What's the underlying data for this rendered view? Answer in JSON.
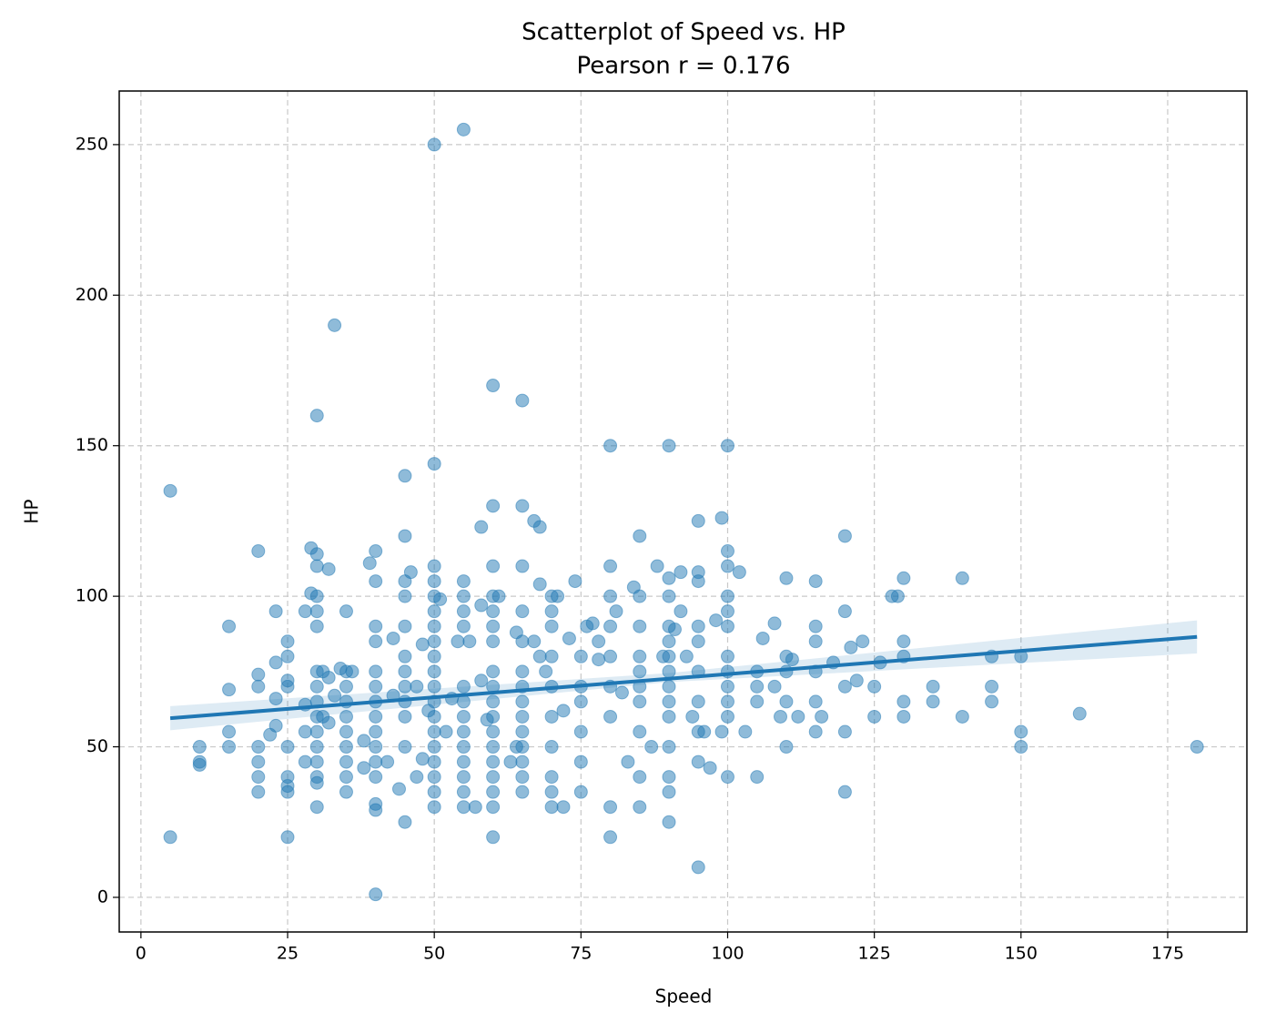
{
  "chart_data": {
    "type": "scatter",
    "title": "Scatterplot of Speed vs. HP",
    "subtitle": "Pearson r = 0.176",
    "x_label": "Speed",
    "y_label": "HP",
    "xlim": [
      -3.7,
      188.5
    ],
    "ylim": [
      -11.5,
      267.8
    ],
    "xticks": [
      0,
      25,
      50,
      75,
      100,
      125,
      150,
      175
    ],
    "yticks": [
      0,
      50,
      100,
      150,
      200,
      250
    ],
    "grid": true,
    "series": [
      {
        "color": "#1f77b4",
        "x": [
          5,
          5,
          10,
          10,
          10,
          15,
          15,
          15,
          15,
          20,
          20,
          20,
          20,
          20,
          20,
          20,
          22,
          23,
          23,
          23,
          23,
          25,
          25,
          25,
          25,
          25,
          25,
          25,
          25,
          25,
          28,
          28,
          28,
          28,
          29,
          29,
          30,
          30,
          30,
          30,
          30,
          30,
          30,
          30,
          30,
          30,
          30,
          30,
          30,
          30,
          30,
          30,
          31,
          31,
          32,
          32,
          32,
          33,
          33,
          34,
          35,
          35,
          35,
          35,
          35,
          35,
          35,
          35,
          35,
          35,
          36,
          38,
          38,
          39,
          40,
          40,
          40,
          40,
          40,
          40,
          40,
          40,
          40,
          40,
          40,
          40,
          40,
          40,
          40,
          42,
          43,
          43,
          44,
          45,
          45,
          45,
          45,
          45,
          45,
          45,
          45,
          45,
          45,
          45,
          45,
          46,
          47,
          47,
          48,
          48,
          49,
          50,
          50,
          50,
          50,
          50,
          50,
          50,
          50,
          50,
          50,
          50,
          50,
          50,
          50,
          50,
          50,
          50,
          50,
          50,
          51,
          52,
          53,
          54,
          55,
          55,
          55,
          55,
          55,
          55,
          55,
          55,
          55,
          55,
          55,
          55,
          55,
          55,
          56,
          57,
          58,
          58,
          58,
          59,
          60,
          60,
          60,
          60,
          60,
          60,
          60,
          60,
          60,
          60,
          60,
          60,
          60,
          60,
          60,
          60,
          60,
          60,
          61,
          63,
          64,
          64,
          65,
          65,
          65,
          65,
          65,
          65,
          65,
          65,
          65,
          65,
          65,
          65,
          65,
          65,
          67,
          67,
          68,
          68,
          68,
          69,
          70,
          70,
          70,
          70,
          70,
          70,
          70,
          70,
          70,
          70,
          71,
          72,
          72,
          73,
          74,
          75,
          75,
          75,
          75,
          75,
          75,
          76,
          77,
          78,
          78,
          80,
          80,
          80,
          80,
          80,
          80,
          80,
          80,
          80,
          81,
          82,
          83,
          84,
          85,
          85,
          85,
          85,
          85,
          85,
          85,
          85,
          85,
          85,
          87,
          88,
          89,
          90,
          90,
          90,
          90,
          90,
          90,
          90,
          90,
          90,
          90,
          90,
          90,
          90,
          90,
          91,
          92,
          92,
          93,
          94,
          95,
          95,
          95,
          95,
          95,
          95,
          95,
          95,
          95,
          95,
          96,
          97,
          98,
          99,
          99,
          100,
          100,
          100,
          100,
          100,
          100,
          100,
          100,
          100,
          100,
          100,
          100,
          102,
          103,
          105,
          105,
          105,
          105,
          106,
          108,
          108,
          109,
          110,
          110,
          110,
          110,
          110,
          111,
          112,
          115,
          115,
          115,
          115,
          115,
          115,
          116,
          118,
          120,
          120,
          120,
          120,
          120,
          121,
          122,
          123,
          125,
          125,
          126,
          128,
          129,
          130,
          130,
          130,
          130,
          130,
          135,
          135,
          140,
          140,
          145,
          145,
          145,
          150,
          150,
          150,
          160,
          180
        ],
        "y": [
          135,
          20,
          50,
          45,
          44,
          90,
          55,
          50,
          69,
          115,
          70,
          74,
          50,
          45,
          40,
          35,
          54,
          95,
          78,
          66,
          57,
          85,
          80,
          72,
          70,
          50,
          40,
          37,
          35,
          20,
          95,
          64,
          55,
          45,
          116,
          101,
          160,
          114,
          110,
          100,
          95,
          90,
          75,
          70,
          65,
          60,
          55,
          50,
          45,
          40,
          38,
          30,
          75,
          60,
          109,
          73,
          58,
          190,
          67,
          76,
          95,
          75,
          70,
          65,
          60,
          55,
          50,
          45,
          40,
          35,
          75,
          52,
          43,
          111,
          115,
          105,
          90,
          85,
          75,
          70,
          65,
          60,
          55,
          50,
          45,
          40,
          31,
          29,
          1,
          45,
          86,
          67,
          36,
          140,
          120,
          105,
          100,
          90,
          80,
          75,
          70,
          65,
          60,
          50,
          25,
          108,
          70,
          40,
          84,
          46,
          62,
          250,
          144,
          110,
          105,
          100,
          95,
          90,
          85,
          80,
          75,
          70,
          65,
          60,
          55,
          50,
          45,
          40,
          35,
          30,
          99,
          55,
          66,
          85,
          255,
          105,
          100,
          95,
          90,
          70,
          65,
          60,
          55,
          50,
          45,
          40,
          35,
          30,
          85,
          30,
          123,
          97,
          72,
          59,
          170,
          130,
          110,
          100,
          95,
          90,
          85,
          75,
          70,
          65,
          60,
          55,
          50,
          45,
          40,
          35,
          30,
          20,
          100,
          45,
          88,
          50,
          165,
          130,
          110,
          95,
          85,
          75,
          70,
          65,
          60,
          55,
          50,
          45,
          40,
          35,
          125,
          85,
          123,
          104,
          80,
          75,
          100,
          95,
          90,
          80,
          70,
          60,
          50,
          40,
          35,
          30,
          100,
          62,
          30,
          86,
          105,
          80,
          70,
          65,
          55,
          45,
          35,
          90,
          91,
          85,
          79,
          150,
          110,
          100,
          90,
          80,
          70,
          60,
          30,
          20,
          95,
          68,
          45,
          103,
          120,
          100,
          90,
          80,
          75,
          70,
          65,
          55,
          40,
          30,
          50,
          110,
          80,
          150,
          106,
          100,
          90,
          85,
          80,
          75,
          70,
          65,
          60,
          50,
          40,
          35,
          25,
          89,
          108,
          95,
          80,
          60,
          125,
          108,
          105,
          90,
          85,
          75,
          65,
          55,
          45,
          10,
          55,
          43,
          92,
          126,
          55,
          150,
          115,
          110,
          100,
          95,
          90,
          80,
          75,
          70,
          65,
          60,
          40,
          108,
          55,
          75,
          70,
          65,
          40,
          86,
          91,
          70,
          60,
          106,
          80,
          75,
          65,
          50,
          79,
          60,
          105,
          90,
          85,
          75,
          65,
          55,
          60,
          78,
          120,
          95,
          70,
          55,
          35,
          83,
          72,
          85,
          70,
          60,
          78,
          100,
          100,
          106,
          85,
          80,
          65,
          60,
          70,
          65,
          106,
          60,
          80,
          70,
          65,
          80,
          55,
          50,
          61,
          50
        ]
      }
    ],
    "fit": {
      "color": "#1f77b4",
      "x": [
        5,
        180
      ],
      "y": [
        59.5,
        86.5
      ]
    },
    "band": {
      "x": [
        5,
        90,
        180
      ],
      "lower": [
        55.5,
        71.5,
        81
      ],
      "upper": [
        63.5,
        74.5,
        92
      ]
    }
  }
}
